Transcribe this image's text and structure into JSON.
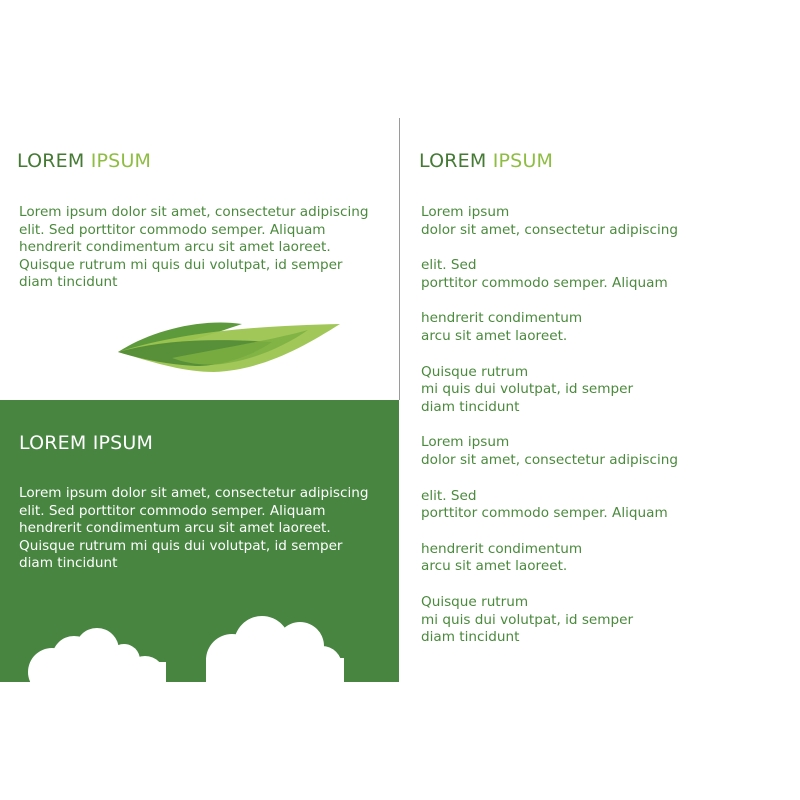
{
  "left_top": {
    "heading_word1": "LOREM",
    "heading_word2": "IPSUM",
    "paragraph_lines": [
      "Lorem ipsum dolor sit amet, consectetur adipiscing",
      "elit. Sed porttitor commodo semper. Aliquam",
      "hendrerit condimentum arcu sit amet laoreet.",
      "Quisque rutrum mi quis dui volutpat, id semper",
      "diam tincidunt"
    ]
  },
  "left_green": {
    "heading": "LOREM IPSUM",
    "paragraph_lines": [
      "Lorem ipsum dolor sit amet, consectetur adipiscing",
      "elit. Sed porttitor commodo semper. Aliquam",
      "hendrerit condimentum arcu sit amet laoreet.",
      "Quisque rutrum mi quis dui volutpat, id semper",
      "diam tincidunt"
    ]
  },
  "right": {
    "heading_word1": "LOREM",
    "heading_word2": "IPSUM",
    "items": [
      {
        "lines": [
          "Lorem ipsum",
          "dolor sit amet, consectetur adipiscing"
        ]
      },
      {
        "lines": [
          "elit. Sed",
          "porttitor commodo semper. Aliquam"
        ]
      },
      {
        "lines": [
          "hendrerit condimentum",
          "arcu sit amet laoreet."
        ]
      },
      {
        "lines": [
          "Quisque rutrum",
          "mi quis dui volutpat, id semper",
          "diam tincidunt"
        ]
      },
      {
        "lines": [
          "Lorem ipsum",
          "dolor sit amet, consectetur adipiscing"
        ]
      },
      {
        "lines": [
          "elit. Sed",
          "porttitor commodo semper. Aliquam"
        ]
      },
      {
        "lines": [
          "hendrerit condimentum",
          "arcu sit amet laoreet."
        ]
      },
      {
        "lines": [
          "Quisque rutrum",
          "mi quis dui volutpat, id semper",
          "diam tincidunt"
        ]
      }
    ]
  },
  "colors": {
    "dark_green": "#447a34",
    "light_green": "#8fbd43",
    "panel_green": "#478540",
    "text_green": "#4a8a3c"
  },
  "icons": [
    "leaf-icon",
    "cloud-icon"
  ]
}
